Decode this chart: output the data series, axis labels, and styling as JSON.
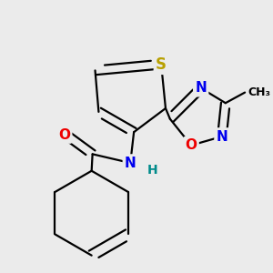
{
  "bg_color": "#ebebeb",
  "atom_colors": {
    "S": "#b8a000",
    "N": "#0000ee",
    "O": "#ee0000",
    "C": "#000000",
    "H": "#008b8b"
  },
  "bond_color": "#000000",
  "bond_width": 1.6,
  "font_size_atom": 11,
  "font_size_small": 9,
  "scale": 1.0
}
